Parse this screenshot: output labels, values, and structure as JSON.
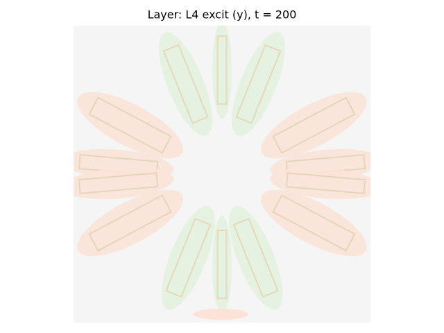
{
  "chart_data": {
    "type": "heatmap",
    "title": "Layer: L4 excit (y), t = 200"
  }
}
